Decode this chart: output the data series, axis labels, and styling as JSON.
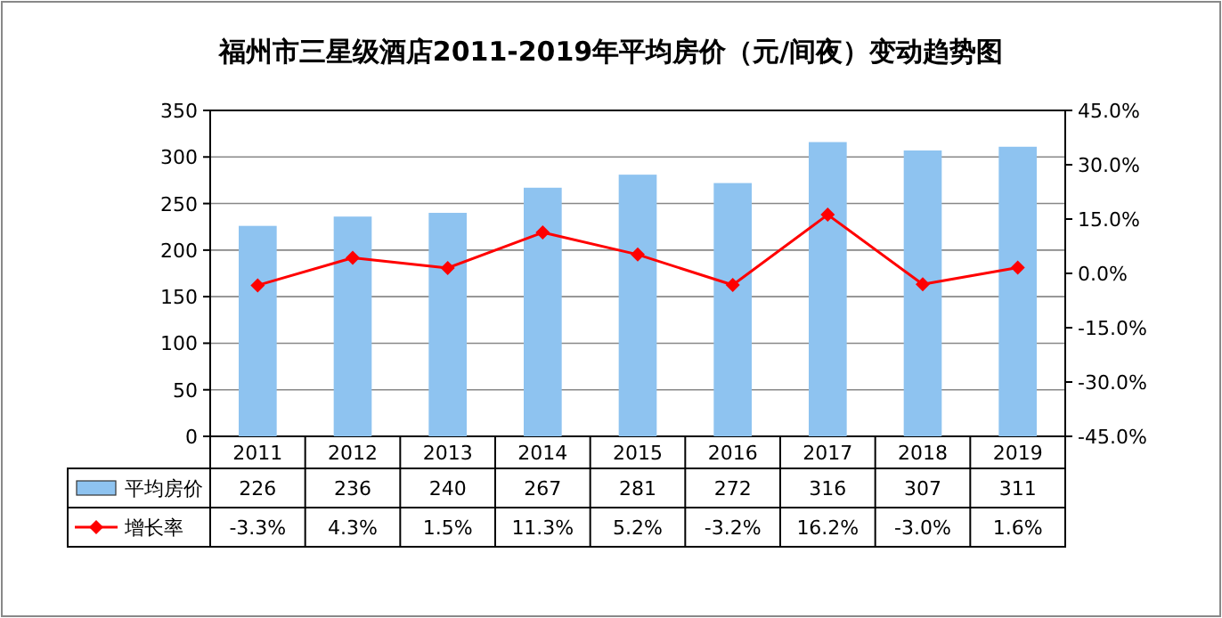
{
  "chart_data": {
    "type": "bar",
    "title": "福州市三星级酒店2011-2019年平均房价（元/间夜）变动趋势图",
    "categories": [
      "2011",
      "2012",
      "2013",
      "2014",
      "2015",
      "2016",
      "2017",
      "2018",
      "2019"
    ],
    "series": [
      {
        "name": "平均房价",
        "color": "#8ec3f0",
        "values": [
          226,
          236,
          240,
          267,
          281,
          272,
          316,
          307,
          311
        ],
        "value_labels": [
          "226",
          "236",
          "240",
          "267",
          "281",
          "272",
          "316",
          "307",
          "311"
        ]
      },
      {
        "name": "增长率",
        "type": "line",
        "axis": "y2",
        "color": "#ff0000",
        "marker": "diamond",
        "values": [
          -3.3,
          4.3,
          1.5,
          11.3,
          5.2,
          -3.2,
          16.2,
          -3.0,
          1.6
        ],
        "value_labels": [
          "-3.3%",
          "4.3%",
          "1.5%",
          "11.3%",
          "5.2%",
          "-3.2%",
          "16.2%",
          "-3.0%",
          "1.6%"
        ]
      }
    ],
    "ylim": [
      0,
      350
    ],
    "yticks": [
      0,
      50,
      100,
      150,
      200,
      250,
      300,
      350
    ],
    "y2lim": [
      -45,
      45
    ],
    "y2ticks": [
      {
        "value": -45,
        "label": "-45.0%"
      },
      {
        "value": -30,
        "label": "-30.0%"
      },
      {
        "value": -15,
        "label": "-15.0%"
      },
      {
        "value": 0,
        "label": "0.0%"
      },
      {
        "value": 15,
        "label": "15.0%"
      },
      {
        "value": 30,
        "label": "30.0%"
      },
      {
        "value": 45,
        "label": "45.0%"
      }
    ],
    "grid": "y",
    "legend": "bottom"
  }
}
